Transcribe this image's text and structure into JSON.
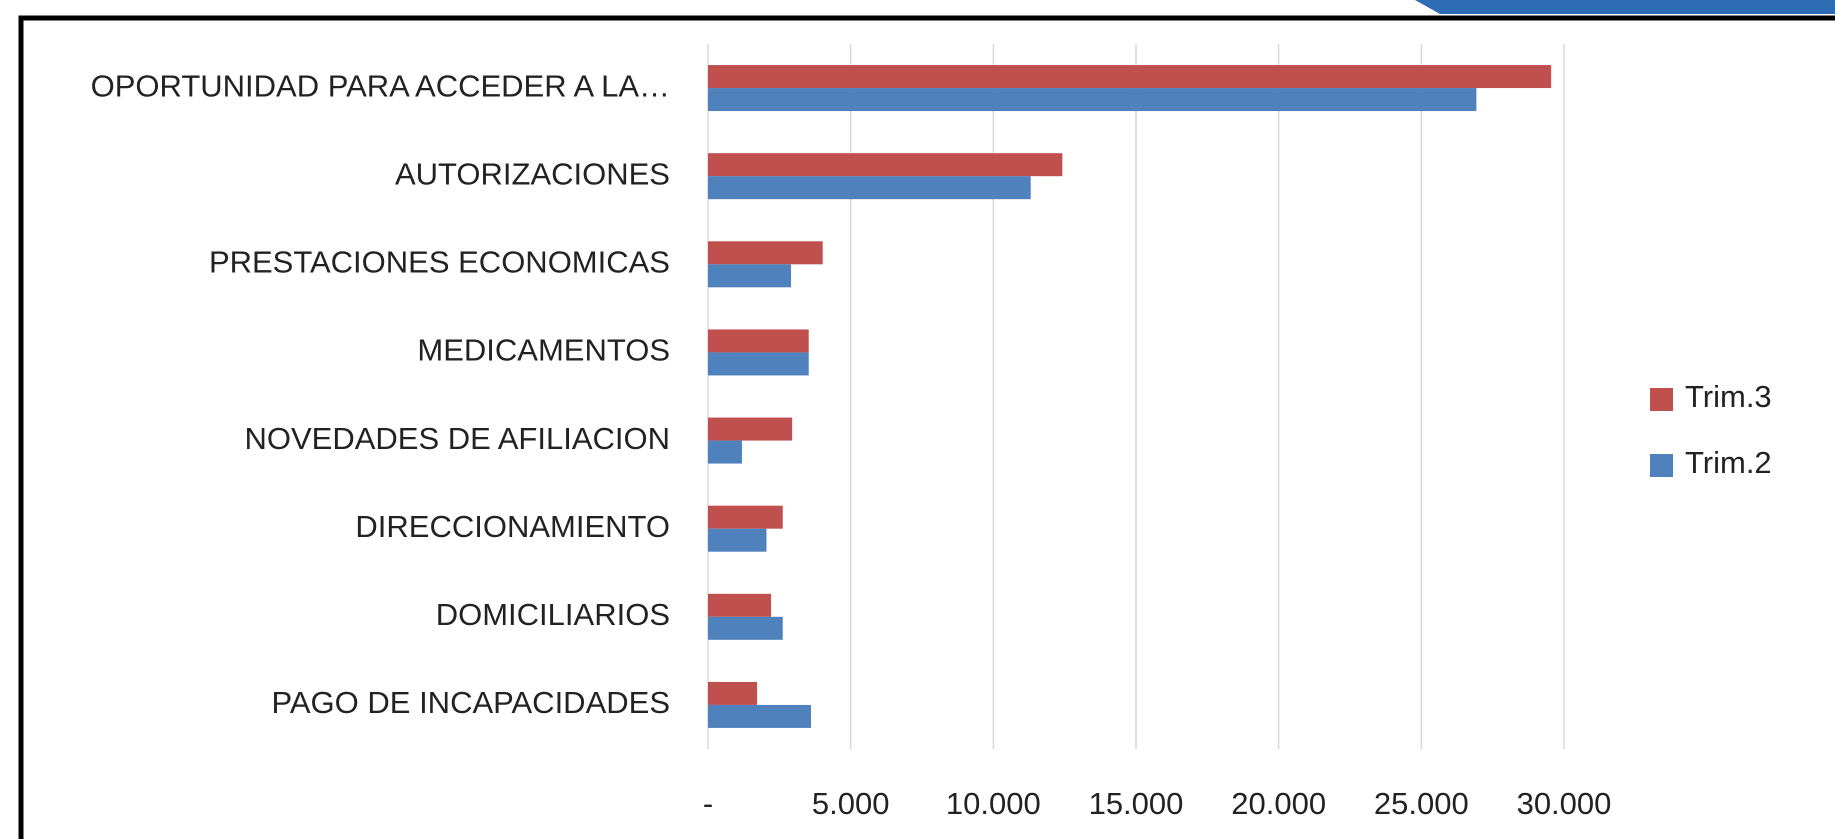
{
  "chart_data": {
    "type": "bar",
    "orientation": "horizontal",
    "categories": [
      "OPORTUNIDAD PARA ACCEDER A LA…",
      "AUTORIZACIONES",
      "PRESTACIONES ECONOMICAS",
      "MEDICAMENTOS",
      "NOVEDADES DE AFILIACION",
      "DIRECCIONAMIENTO",
      "DOMICILIARIOS",
      "PAGO DE INCAPACIDADES"
    ],
    "series": [
      {
        "name": "Trim.3",
        "color": "#c0504d",
        "values": [
          29550,
          12420,
          4020,
          3530,
          2950,
          2620,
          2210,
          1720
        ]
      },
      {
        "name": "Trim.2",
        "color": "#4f81bd",
        "values": [
          26930,
          11310,
          2910,
          3530,
          1190,
          2050,
          2620,
          3610
        ]
      }
    ],
    "xlim": [
      0,
      30000
    ],
    "xticks": [
      {
        "value": 0,
        "label": "-"
      },
      {
        "value": 5000,
        "label": "5.000"
      },
      {
        "value": 10000,
        "label": "10.000"
      },
      {
        "value": 15000,
        "label": "15.000"
      },
      {
        "value": 20000,
        "label": "20.000"
      },
      {
        "value": 25000,
        "label": "25.000"
      },
      {
        "value": 30000,
        "label": "30.000"
      }
    ],
    "grid": true,
    "legend": "right"
  }
}
